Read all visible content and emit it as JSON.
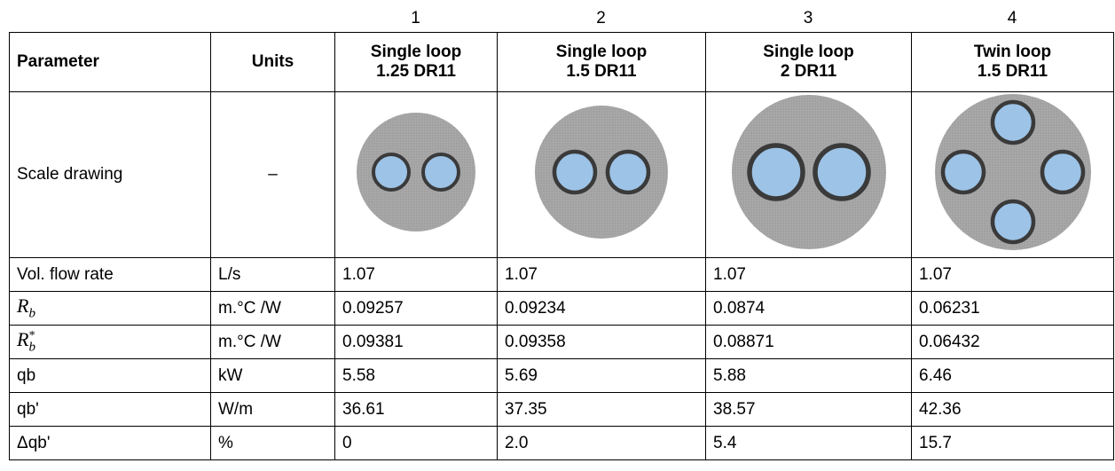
{
  "column_numbers": [
    "1",
    "2",
    "3",
    "4"
  ],
  "table": {
    "header": {
      "parameter": "Parameter",
      "units": "Units",
      "columns": [
        [
          "Single loop",
          "1.25 DR11"
        ],
        [
          "Single loop",
          "1.5 DR11"
        ],
        [
          "Single loop",
          "2 DR11"
        ],
        [
          "Twin loop",
          "1.5 DR11"
        ]
      ]
    },
    "drawing_row": {
      "parameter": "Scale drawing",
      "units": "–"
    },
    "rows": [
      {
        "parameter": "Vol. flow rate",
        "units": "L/s",
        "values": [
          "1.07",
          "1.07",
          "1.07",
          "1.07"
        ]
      },
      {
        "parameter": {
          "main": "R",
          "sub": "b"
        },
        "units": "m.°C /W",
        "values": [
          "0.09257",
          "0.09234",
          "0.0874",
          "0.06231"
        ]
      },
      {
        "parameter": {
          "main": "R",
          "sub": "b",
          "sup": "*"
        },
        "units": "m.°C /W",
        "values": [
          "0.09381",
          "0.09358",
          "0.08871",
          "0.06432"
        ]
      },
      {
        "parameter": "qb",
        "units": "kW",
        "values": [
          "5.58",
          "5.69",
          "5.88",
          "6.46"
        ]
      },
      {
        "parameter": "qb'",
        "units": "W/m",
        "values": [
          "36.61",
          "37.35",
          "38.57",
          "42.36"
        ]
      },
      {
        "parameter": "Δqb'",
        "units": "%",
        "values": [
          "0",
          "2.0",
          "5.4",
          "15.7"
        ]
      }
    ]
  }
}
